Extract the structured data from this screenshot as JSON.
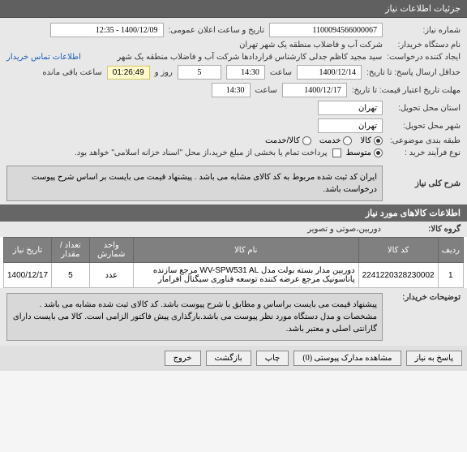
{
  "header": {
    "title": "جزئیات اطلاعات نیاز"
  },
  "form": {
    "niaz_no_label": "شماره نیاز:",
    "niaz_no": "1100094566000067",
    "announce_label": "تاریخ و ساعت اعلان عمومی:",
    "announce_val": "1400/12/09 - 12:35",
    "buyer_label": "نام دستگاه خریدار:",
    "buyer_val": "شرکت آب و فاضلاب منطقه یک شهر تهران",
    "creator_label": "ایجاد کننده درخواست:",
    "creator_val": "سید مجید کاظم جدلی کارشناس قراردادها شرکت آب و فاضلاب منطقه یک شهر",
    "contact_link": "اطلاعات تماس خریدار",
    "deadline_label": "حداقل ارسال پاسخ: تا تاریخ:",
    "deadline_date": "1400/12/14",
    "time_label": "ساعت",
    "deadline_time": "14:30",
    "days_remain": "5",
    "day_and": "روز و",
    "countdown": "01:26:49",
    "remain_text": "ساعت باقی مانده",
    "quote_deadline_label": "مهلت تاریخ اعتبار قیمت: تا تاریخ:",
    "quote_date": "1400/12/17",
    "quote_time": "14:30",
    "location_label": "استان محل تحویل:",
    "location_val": "تهران",
    "city_label": "شهر محل تحویل:",
    "city_val": "تهران",
    "category_label": "طبقه بندی موضوعی:",
    "cat_goods": "کالا",
    "cat_service": "خدمت",
    "cat_both": "کالا/خدمت",
    "process_label": "نوع فرآیند خرید :",
    "proc_medium": "متوسط",
    "payment_note": "پرداخت تمام یا بخشی از مبلغ خرید،از محل \"اسناد خزانه اسلامی\" خواهد بود."
  },
  "general_desc": {
    "title": "شرح کلی نیاز",
    "text": "ایران کد ثبت شده مربوط به کد کالای مشابه می باشد . پیشنهاد قیمت می بایست بر اساس شرح پیوست درخواست باشد."
  },
  "items": {
    "title": "اطلاعات کالاهای مورد نیاز",
    "group_label": "گروه کالا:",
    "group_val": "دوربین،صوتی و تصویر",
    "cols": {
      "row": "ردیف",
      "code": "کد کالا",
      "name": "نام کالا",
      "unit": "واحد شمارش",
      "qty": "تعداد / مقدار",
      "date": "تاریخ نیاز"
    },
    "rows": [
      {
        "idx": "1",
        "code": "2241220328230002",
        "name": "دوربین مدار بسته بولت مدل WV-SPW531 AL مرجع سازنده پاناسونیک مرجع عرضه کننده توسعه فناوری سیگنال افرامار",
        "unit": "عدد",
        "qty": "5",
        "date": "1400/12/17"
      }
    ]
  },
  "buyer_notes": {
    "label": "توضیحات خریدار:",
    "text": "پیشنهاد قیمت می بایست براساس و مطابق با شرح پیوست باشد. کد کالای ثبت شده مشابه می باشد . مشخصات و مدل دستگاه مورد نظر پیوست می باشد.بارگذاری پیش فاکتور الزامی است. کالا می بایست دارای گارانتی اصلی و معتبر باشد."
  },
  "buttons": {
    "reply": "پاسخ به نیاز",
    "attachments": "مشاهده مدارک پیوستی (0)",
    "print": "چاپ",
    "back": "بازگشت",
    "exit": "خروج"
  }
}
